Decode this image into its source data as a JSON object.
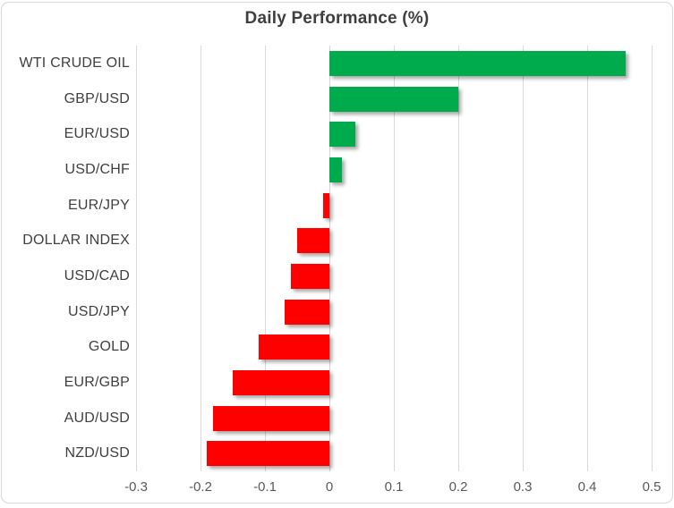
{
  "chart": {
    "title": "Daily Performance (%)"
  },
  "chart_data": {
    "type": "bar",
    "orientation": "horizontal",
    "title": "Daily Performance (%)",
    "xlabel": "",
    "ylabel": "",
    "categories": [
      "WTI CRUDE OIL",
      "GBP/USD",
      "EUR/USD",
      "USD/CHF",
      "EUR/JPY",
      "DOLLAR INDEX",
      "USD/CAD",
      "USD/JPY",
      "GOLD",
      "EUR/GBP",
      "AUD/USD",
      "NZD/USD"
    ],
    "values": [
      0.46,
      0.2,
      0.04,
      0.02,
      -0.01,
      -0.05,
      -0.06,
      -0.07,
      -0.11,
      -0.15,
      -0.18,
      -0.19
    ],
    "xlim": [
      -0.3,
      0.5
    ],
    "xticks": [
      -0.3,
      -0.2,
      -0.1,
      0,
      0.1,
      0.2,
      0.3,
      0.4,
      0.5
    ],
    "xtick_labels": [
      "-0.3",
      "-0.2",
      "-0.1",
      "0",
      "0.1",
      "0.2",
      "0.3",
      "0.4",
      "0.5"
    ],
    "grid": true,
    "legend": false,
    "colors": {
      "positive": "#00AB4E",
      "negative": "#FF0000",
      "gridline": "#D9D9D9",
      "title_text": "#3F3F3F",
      "label_text": "#3F3F3F",
      "tick_text": "#595959",
      "background": "#FFFFFF",
      "frame_border": "#D7D7D7"
    }
  }
}
